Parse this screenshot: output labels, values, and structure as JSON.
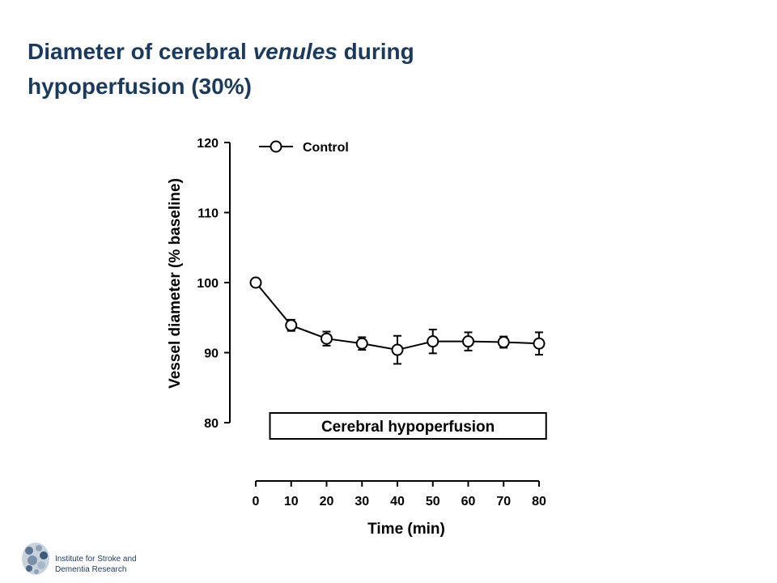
{
  "slide": {
    "title_part1": "Diameter of cerebral ",
    "title_italic": "venules",
    "title_part2": " during",
    "title_line2": "hypoperfusion (30%)"
  },
  "chart_data": {
    "type": "line",
    "x": [
      0,
      10,
      20,
      30,
      40,
      50,
      60,
      70,
      80
    ],
    "series": [
      {
        "name": "Control",
        "values": [
          100,
          93.9,
          92.0,
          91.3,
          90.4,
          91.6,
          91.6,
          91.5,
          91.3
        ],
        "errors": [
          0,
          0.8,
          1.0,
          0.9,
          2.0,
          1.7,
          1.3,
          0.8,
          1.6
        ],
        "marker": "open-circle",
        "color": "#000000"
      }
    ],
    "xlabel": "Time (min)",
    "ylabel": "Vessel diameter (% baseline)",
    "xlim": [
      0,
      80
    ],
    "ylim": [
      80,
      120
    ],
    "xticks": [
      0,
      10,
      20,
      30,
      40,
      50,
      60,
      70,
      80
    ],
    "yticks": [
      80,
      90,
      100,
      110,
      120
    ],
    "x_tick_labels": [
      "0",
      "10",
      "20",
      "30",
      "40",
      "50",
      "60",
      "70",
      "80"
    ],
    "y_tick_labels": [
      "80",
      "90",
      "100",
      "110",
      "120"
    ],
    "legend_position": "top-left",
    "grid": false,
    "annotation": {
      "label": "Cerebral hypoperfusion",
      "x_range": [
        4,
        82
      ]
    }
  },
  "footer": {
    "line1": "Institute for Stroke and",
    "line2": "Dementia Research"
  },
  "colors": {
    "title": "#1c3a5c",
    "axis": "#000000",
    "background": "#ffffff"
  },
  "logo_icon": "brain-logo-icon"
}
